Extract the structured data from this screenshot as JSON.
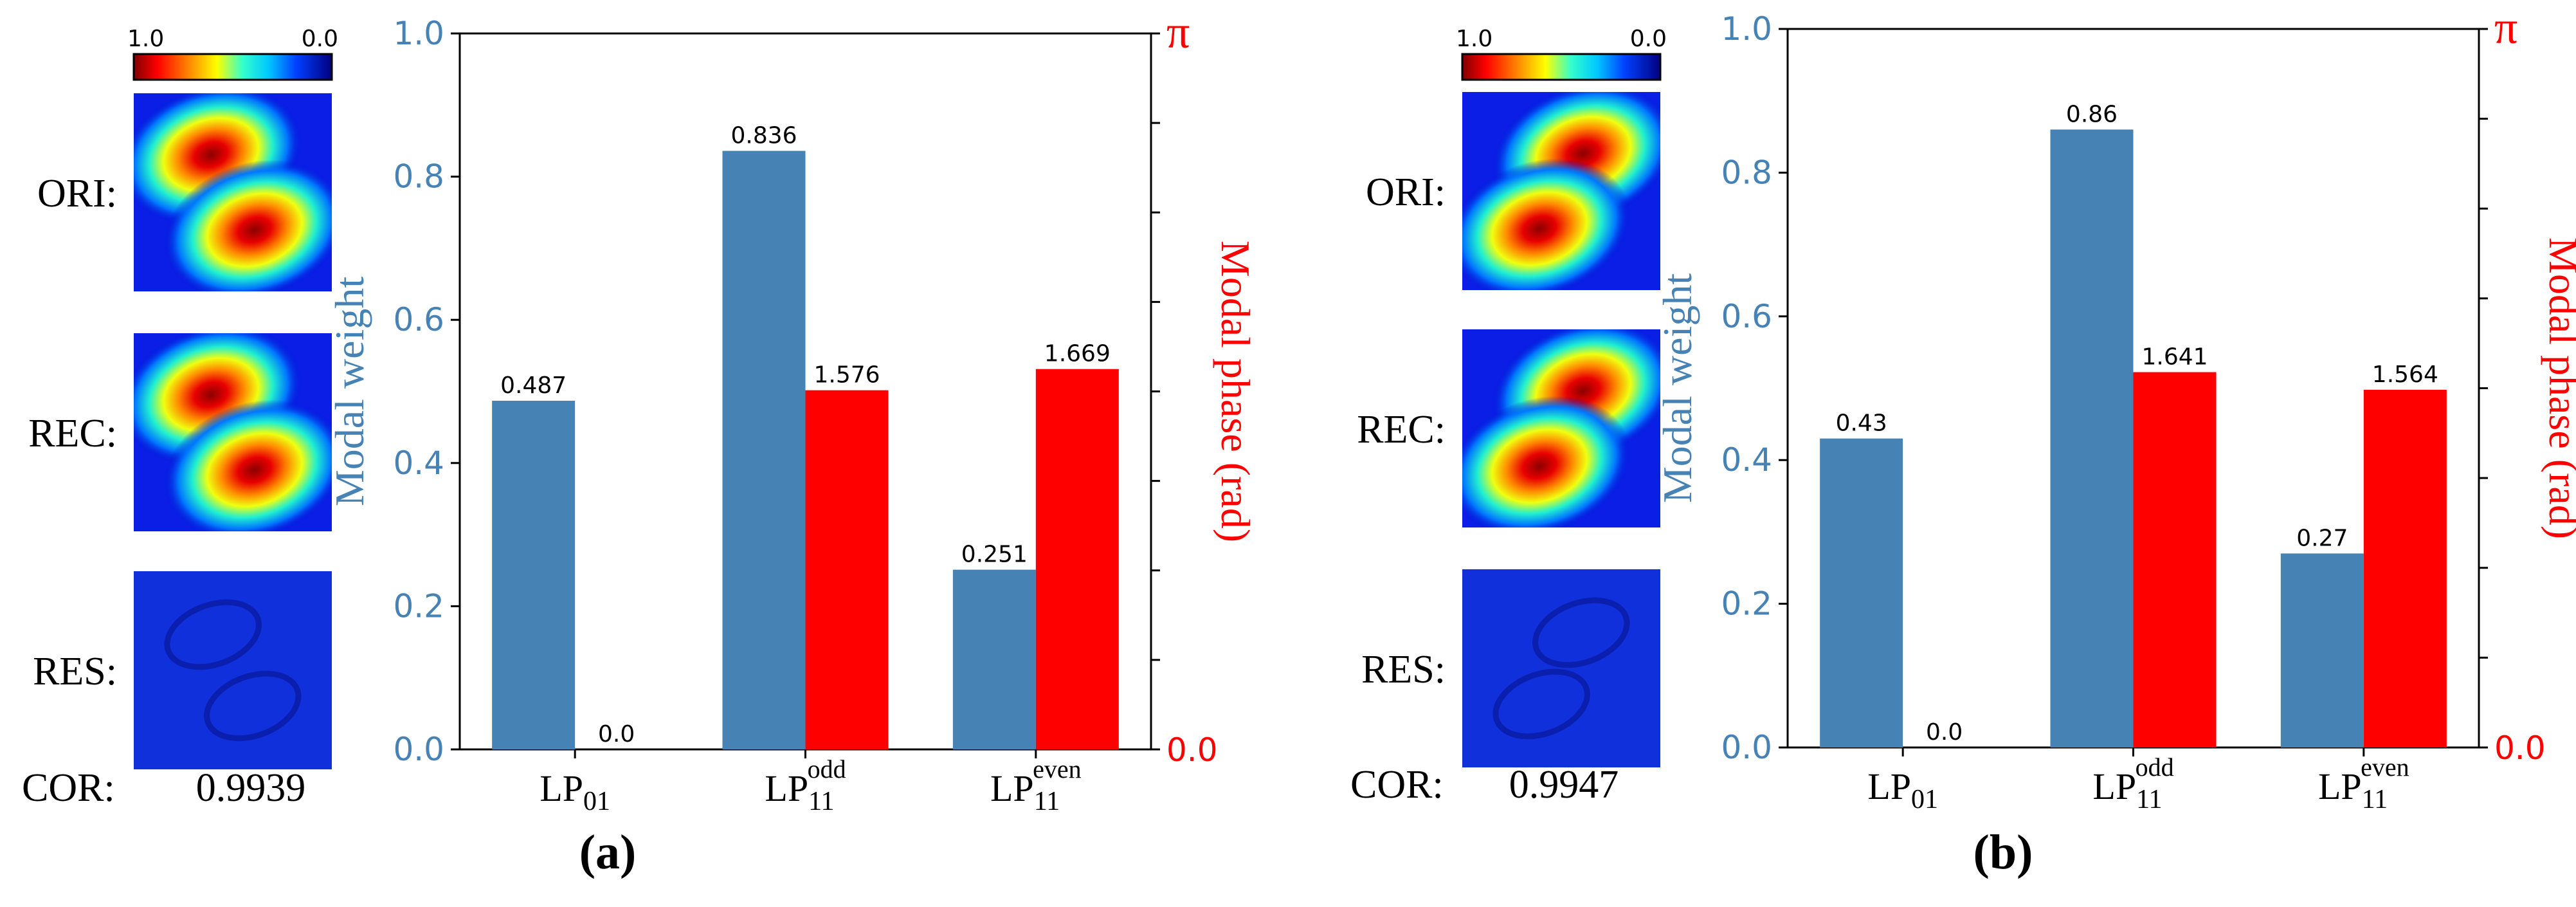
{
  "colors": {
    "weight": "#4682b4",
    "phase": "#ff0000",
    "weight_axis": "#4682b4",
    "phase_axis": "#ff0000",
    "text": "#000000"
  },
  "colorbar": {
    "max_label": "1.0",
    "min_label": "0.0",
    "colormap": "jet"
  },
  "row_labels": {
    "ori": "ORI:",
    "rec": "REC:",
    "res": "RES:",
    "cor": "COR:"
  },
  "axes": {
    "left_label": "Modal weight",
    "right_label": "Modal phase (rad)",
    "right_top_label": "π",
    "right_bottom_label": "0.0"
  },
  "chart_data": [
    {
      "type": "bar",
      "panel_label": "(a)",
      "correlation": "0.9939",
      "lobe_orientation": "upper-left to lower-right",
      "categories": [
        {
          "base": "LP",
          "sub": "01",
          "sup": ""
        },
        {
          "base": "LP",
          "sub": "11",
          "sup": "odd"
        },
        {
          "base": "LP",
          "sub": "11",
          "sup": "even"
        }
      ],
      "series": [
        {
          "name": "Modal weight",
          "axis": "left",
          "values": [
            0.487,
            0.836,
            0.251
          ],
          "labels": [
            "0.487",
            "0.836",
            "0.251"
          ]
        },
        {
          "name": "Modal phase (rad)",
          "axis": "right",
          "values": [
            0.0,
            1.576,
            1.669
          ],
          "labels": [
            "0.0",
            "1.576",
            "1.669"
          ]
        }
      ],
      "ylim_left": [
        0,
        1.0
      ],
      "ylim_right": [
        0,
        3.14159
      ],
      "yticks_left": [
        "0.0",
        "0.2",
        "0.4",
        "0.6",
        "0.8",
        "1.0"
      ],
      "xlabel": "",
      "ylabel": "Modal weight"
    },
    {
      "type": "bar",
      "panel_label": "(b)",
      "correlation": "0.9947",
      "lobe_orientation": "upper-right to lower-left",
      "categories": [
        {
          "base": "LP",
          "sub": "01",
          "sup": ""
        },
        {
          "base": "LP",
          "sub": "11",
          "sup": "odd"
        },
        {
          "base": "LP",
          "sub": "11",
          "sup": "even"
        }
      ],
      "series": [
        {
          "name": "Modal weight",
          "axis": "left",
          "values": [
            0.43,
            0.86,
            0.27
          ],
          "labels": [
            "0.43",
            "0.86",
            "0.27"
          ]
        },
        {
          "name": "Modal phase (rad)",
          "axis": "right",
          "values": [
            0.0,
            1.641,
            1.564
          ],
          "labels": [
            "0.0",
            "1.641",
            "1.564"
          ]
        }
      ],
      "ylim_left": [
        0,
        1.0
      ],
      "ylim_right": [
        0,
        3.14159
      ],
      "yticks_left": [
        "0.0",
        "0.2",
        "0.4",
        "0.6",
        "0.8",
        "1.0"
      ],
      "xlabel": "",
      "ylabel": "Modal weight"
    }
  ]
}
